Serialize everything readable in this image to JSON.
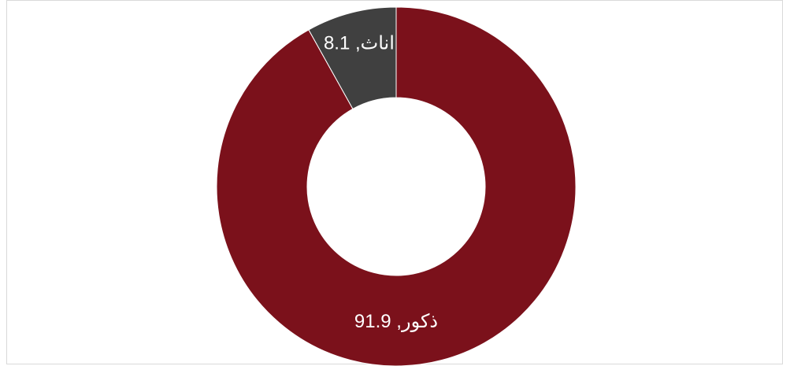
{
  "chart_data": {
    "type": "pie",
    "variant": "donut",
    "title": "",
    "slices": [
      {
        "label": "ذكور",
        "value": 91.9,
        "data_label": "ذكور, 91.9",
        "color": "#7b111b"
      },
      {
        "label": "اناث",
        "value": 8.1,
        "data_label": "اناث, 8.1",
        "color": "#404040"
      }
    ],
    "start": "top",
    "direction": "clockwise",
    "legend": "none"
  }
}
